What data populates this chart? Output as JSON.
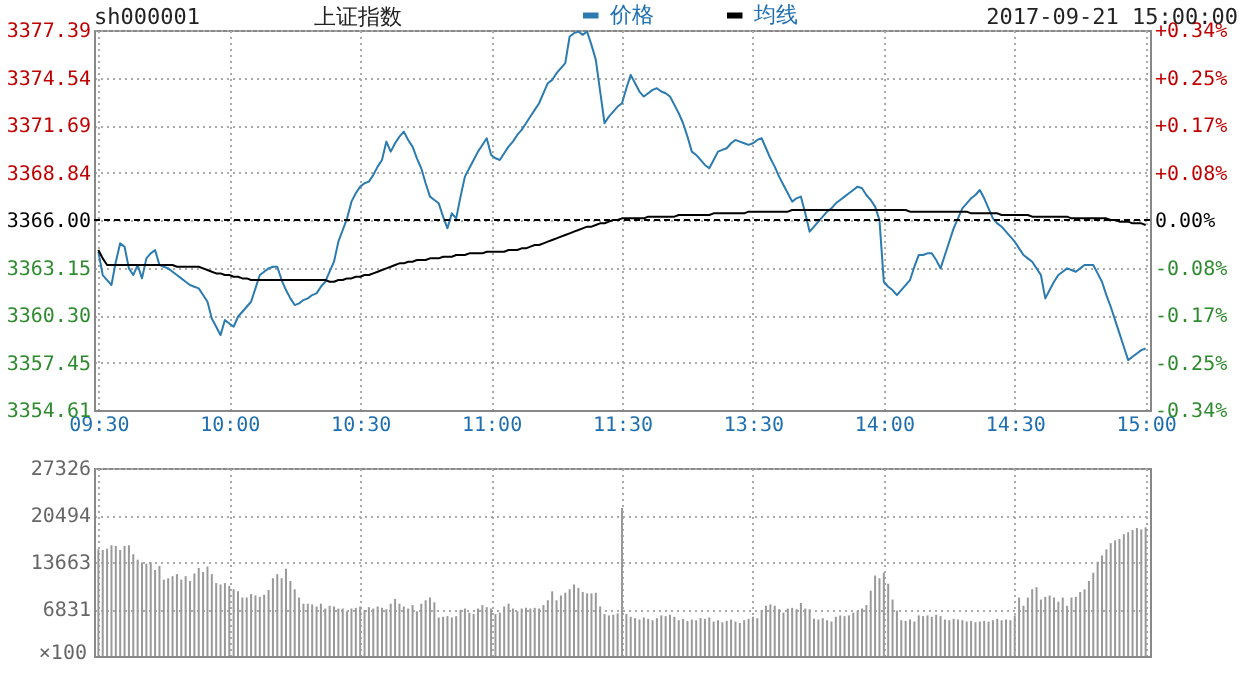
{
  "chart_data": [
    {
      "type": "line",
      "title": "上证指数",
      "annotations": [
        "sh000001",
        "2017-09-21 15:00:00"
      ],
      "legend": "top",
      "grid": true,
      "marker": "none",
      "line_style": "solid",
      "categories": [
        "09:30",
        null,
        null,
        null,
        null,
        null,
        null,
        null,
        null,
        null,
        null,
        null,
        null,
        null,
        null,
        null,
        null,
        null,
        null,
        null,
        null,
        null,
        null,
        null,
        null,
        null,
        null,
        null,
        null,
        null,
        "10:00",
        null,
        null,
        null,
        null,
        null,
        null,
        null,
        null,
        null,
        null,
        null,
        null,
        null,
        null,
        null,
        null,
        null,
        null,
        null,
        null,
        null,
        null,
        null,
        null,
        null,
        null,
        null,
        null,
        null,
        "10:30",
        null,
        null,
        null,
        null,
        null,
        null,
        null,
        null,
        null,
        null,
        null,
        null,
        null,
        null,
        null,
        null,
        null,
        null,
        null,
        null,
        null,
        null,
        null,
        null,
        null,
        null,
        null,
        null,
        null,
        "11:00",
        null,
        null,
        null,
        null,
        null,
        null,
        null,
        null,
        null,
        null,
        null,
        null,
        null,
        null,
        null,
        null,
        null,
        null,
        null,
        null,
        null,
        null,
        null,
        null,
        null,
        null,
        null,
        null,
        null,
        "11:30",
        null,
        null,
        null,
        null,
        null,
        null,
        null,
        null,
        null,
        null,
        null,
        null,
        null,
        null,
        null,
        null,
        null,
        null,
        null,
        null,
        null,
        null,
        null,
        null,
        null,
        null,
        null,
        null,
        null,
        "13:30",
        null,
        null,
        null,
        null,
        null,
        null,
        null,
        null,
        null,
        null,
        null,
        null,
        null,
        null,
        null,
        null,
        null,
        null,
        null,
        null,
        null,
        null,
        null,
        null,
        null,
        null,
        null,
        null,
        null,
        "14:00",
        null,
        null,
        null,
        null,
        null,
        null,
        null,
        null,
        null,
        null,
        null,
        null,
        null,
        null,
        null,
        null,
        null,
        null,
        null,
        null,
        null,
        null,
        null,
        null,
        null,
        null,
        null,
        null,
        null,
        "14:30",
        null,
        null,
        null,
        null,
        null,
        null,
        null,
        null,
        null,
        null,
        null,
        null,
        null,
        null,
        null,
        null,
        null,
        null,
        null,
        null,
        null,
        null,
        null,
        null,
        null,
        null,
        null,
        null,
        null,
        "15:00"
      ],
      "ylim": [
        3354.61,
        3377.39
      ],
      "yticks": [
        3354.61,
        3357.45,
        {
          "value": 3360.3,
          "label": "3360.30"
        },
        3363.15,
        {
          "value": 3366,
          "label": "3366.00"
        },
        3368.84,
        3371.69,
        3374.54,
        3377.39
      ],
      "y2lim": [
        -0.34,
        0.34
      ],
      "y2ticks": [
        {
          "value": -0.34,
          "label": "-0.34%"
        },
        {
          "value": -0.255,
          "label": "-0.25%"
        },
        {
          "value": -0.17,
          "label": "-0.17%"
        },
        {
          "value": -0.085,
          "label": "-0.08%"
        },
        {
          "value": 0,
          "label": "0.00%"
        },
        {
          "value": 0.085,
          "label": "+0.08%"
        },
        {
          "value": 0.17,
          "label": "+0.17%"
        },
        {
          "value": 0.255,
          "label": "+0.25%"
        },
        {
          "value": 0.34,
          "label": "+0.34%"
        }
      ],
      "ref_lines": [
        {
          "axis": "y2",
          "value": 0,
          "color": "#000000",
          "line_style": "dashed"
        }
      ],
      "series": [
        {
          "name": "价格",
          "color": "#2b7bb0",
          "values": [
            3364.1,
            3362.7,
            3362.4,
            3362.1,
            3363.5,
            3364.6,
            3364.4,
            3363.1,
            3362.7,
            3363.3,
            3362.5,
            3363.7,
            3364.0,
            3364.2,
            3363.3,
            3363.2,
            3363.1,
            3362.9,
            3362.7,
            3362.5,
            3362.3,
            3362.1,
            3362.0,
            3361.9,
            3361.5,
            3361.1,
            3360.1,
            3359.6,
            3359.1,
            3360.0,
            3359.8,
            3359.6,
            3360.2,
            3360.5,
            3360.8,
            3361.1,
            3361.9,
            3362.7,
            3362.9,
            3363.1,
            3363.2,
            3363.2,
            3362.4,
            3361.8,
            3361.3,
            3360.9,
            3361.0,
            3361.2,
            3361.3,
            3361.5,
            3361.6,
            3362.0,
            3362.3,
            3362.9,
            3363.5,
            3364.7,
            3365.4,
            3366.1,
            3367.1,
            3367.6,
            3368.0,
            3368.2,
            3368.3,
            3368.7,
            3369.2,
            3369.6,
            3370.7,
            3370.1,
            3370.6,
            3371.0,
            3371.3,
            3370.8,
            3370.4,
            3369.7,
            3369.1,
            3368.2,
            3367.4,
            3367.2,
            3367.0,
            3366.2,
            3365.5,
            3366.4,
            3366.1,
            3367.4,
            3368.6,
            3369.1,
            3369.6,
            3370.1,
            3370.5,
            3370.9,
            3369.9,
            3369.7,
            3369.6,
            3370.0,
            3370.4,
            3370.7,
            3371.1,
            3371.4,
            3371.8,
            3372.2,
            3372.6,
            3373.0,
            3373.6,
            3374.2,
            3374.4,
            3374.8,
            3375.1,
            3375.4,
            3377.0,
            3377.2,
            3377.3,
            3377.1,
            3377.3,
            3376.5,
            3375.6,
            3373.7,
            3371.8,
            3372.2,
            3372.5,
            3372.8,
            3373.0,
            3373.9,
            3374.7,
            3374.2,
            3373.7,
            3373.4,
            3373.6,
            3373.8,
            3373.9,
            3373.7,
            3373.6,
            3373.4,
            3372.9,
            3372.4,
            3371.8,
            3371.0,
            3370.1,
            3369.9,
            3369.6,
            3369.3,
            3369.1,
            3369.6,
            3370.1,
            3370.2,
            3370.3,
            3370.6,
            3370.8,
            3370.7,
            3370.6,
            3370.5,
            3370.6,
            3370.8,
            3370.9,
            3370.3,
            3369.7,
            3369.2,
            3368.6,
            3368.1,
            3367.6,
            3367.1,
            3367.3,
            3367.4,
            3366.4,
            3365.3,
            3365.6,
            3365.9,
            3366.2,
            3366.5,
            3366.7,
            3367.0,
            3367.2,
            3367.4,
            3367.6,
            3367.8,
            3368.0,
            3367.9,
            3367.5,
            3367.2,
            3366.8,
            3366.0,
            3362.3,
            3362.0,
            3361.8,
            3361.5,
            3361.8,
            3362.1,
            3362.4,
            3363.2,
            3363.9,
            3363.9,
            3364.0,
            3364.0,
            3363.6,
            3363.1,
            3363.9,
            3364.7,
            3365.5,
            3366.1,
            3366.7,
            3367.0,
            3367.3,
            3367.5,
            3367.8,
            3367.3,
            3366.7,
            3366.1,
            3365.8,
            3365.6,
            3365.3,
            3365.0,
            3364.7,
            3364.3,
            3363.9,
            3363.7,
            3363.5,
            3363.1,
            3362.7,
            3361.3,
            3361.8,
            3362.3,
            3362.7,
            3362.9,
            3363.1,
            3363.0,
            3362.9,
            3363.1,
            3363.3,
            3363.3,
            3363.3,
            3362.8,
            3362.3,
            3361.5,
            3360.8,
            3360.0,
            3359.2,
            3358.4,
            3357.6,
            3357.8,
            3358.0,
            3358.2,
            3358.3
          ]
        },
        {
          "name": "均线",
          "color": "#000000",
          "values": [
            3364.2,
            3363.7,
            3363.3,
            3363.3,
            3363.3,
            3363.3,
            3363.3,
            3363.3,
            3363.3,
            3363.3,
            3363.3,
            3363.3,
            3363.3,
            3363.3,
            3363.3,
            3363.3,
            3363.3,
            3363.3,
            3363.2,
            3363.2,
            3363.2,
            3363.2,
            3363.2,
            3363.2,
            3363.1,
            3363.0,
            3362.9,
            3362.8,
            3362.8,
            3362.7,
            3362.7,
            3362.6,
            3362.6,
            3362.5,
            3362.5,
            3362.4,
            3362.4,
            3362.4,
            3362.4,
            3362.4,
            3362.4,
            3362.4,
            3362.4,
            3362.4,
            3362.4,
            3362.4,
            3362.4,
            3362.4,
            3362.4,
            3362.4,
            3362.4,
            3362.4,
            3362.4,
            3362.3,
            3362.3,
            3362.4,
            3362.4,
            3362.5,
            3362.5,
            3362.6,
            3362.6,
            3362.7,
            3362.7,
            3362.8,
            3362.9,
            3363.0,
            3363.1,
            3363.2,
            3363.3,
            3363.4,
            3363.4,
            3363.5,
            3363.5,
            3363.6,
            3363.6,
            3363.6,
            3363.7,
            3363.7,
            3363.7,
            3363.8,
            3363.8,
            3363.8,
            3363.9,
            3363.9,
            3363.9,
            3364.0,
            3364.0,
            3364.0,
            3364.0,
            3364.1,
            3364.1,
            3364.1,
            3364.1,
            3364.1,
            3364.2,
            3364.2,
            3364.2,
            3364.3,
            3364.3,
            3364.4,
            3364.5,
            3364.5,
            3364.6,
            3364.7,
            3364.8,
            3364.9,
            3365.0,
            3365.1,
            3365.2,
            3365.3,
            3365.4,
            3365.5,
            3365.6,
            3365.6,
            3365.7,
            3365.8,
            3365.8,
            3365.9,
            3366.0,
            3366.0,
            3366.1,
            3366.1,
            3366.1,
            3366.1,
            3366.1,
            3366.1,
            3366.2,
            3366.2,
            3366.2,
            3366.2,
            3366.2,
            3366.2,
            3366.2,
            3366.3,
            3366.3,
            3366.3,
            3366.3,
            3366.3,
            3366.3,
            3366.3,
            3366.3,
            3366.4,
            3366.4,
            3366.4,
            3366.4,
            3366.4,
            3366.4,
            3366.4,
            3366.4,
            3366.5,
            3366.5,
            3366.5,
            3366.5,
            3366.5,
            3366.5,
            3366.5,
            3366.5,
            3366.5,
            3366.5,
            3366.6,
            3366.6,
            3366.6,
            3366.6,
            3366.6,
            3366.6,
            3366.6,
            3366.6,
            3366.6,
            3366.6,
            3366.6,
            3366.6,
            3366.6,
            3366.6,
            3366.6,
            3366.6,
            3366.6,
            3366.6,
            3366.6,
            3366.6,
            3366.6,
            3366.6,
            3366.6,
            3366.6,
            3366.6,
            3366.6,
            3366.6,
            3366.5,
            3366.5,
            3366.5,
            3366.5,
            3366.5,
            3366.5,
            3366.5,
            3366.5,
            3366.5,
            3366.5,
            3366.5,
            3366.5,
            3366.5,
            3366.5,
            3366.4,
            3366.4,
            3366.4,
            3366.4,
            3366.4,
            3366.4,
            3366.4,
            3366.3,
            3366.3,
            3366.3,
            3366.3,
            3366.3,
            3366.3,
            3366.3,
            3366.2,
            3366.2,
            3366.2,
            3366.2,
            3366.2,
            3366.2,
            3366.2,
            3366.2,
            3366.2,
            3366.1,
            3366.1,
            3366.1,
            3366.1,
            3366.1,
            3366.1,
            3366.1,
            3366.1,
            3366.1,
            3366.0,
            3366.0,
            3365.9,
            3365.9,
            3365.9,
            3365.8,
            3365.8,
            3365.8,
            3365.7
          ]
        }
      ]
    },
    {
      "type": "bar",
      "grid": true,
      "tick_labels": "y",
      "color": "#999999",
      "ylabel": "×100",
      "categories": [
        null,
        null,
        null,
        null,
        null,
        null,
        null,
        null,
        null,
        null,
        null,
        null,
        null,
        null,
        null,
        null,
        null,
        null,
        null,
        null,
        null,
        null,
        null,
        null,
        null,
        null,
        null,
        null,
        null,
        null,
        null,
        null,
        null,
        null,
        null,
        null,
        null,
        null,
        null,
        null,
        null,
        null,
        null,
        null,
        null,
        null,
        null,
        null,
        null,
        null,
        null,
        null,
        null,
        null,
        null,
        null,
        null,
        null,
        null,
        null,
        null,
        null,
        null,
        null,
        null,
        null,
        null,
        null,
        null,
        null,
        null,
        null,
        null,
        null,
        null,
        null,
        null,
        null,
        null,
        null,
        null,
        null,
        null,
        null,
        null,
        null,
        null,
        null,
        null,
        null,
        null,
        null,
        null,
        null,
        null,
        null,
        null,
        null,
        null,
        null,
        null,
        null,
        null,
        null,
        null,
        null,
        null,
        null,
        null,
        null,
        null,
        null,
        null,
        null,
        null,
        null,
        null,
        null,
        null,
        null,
        null,
        null,
        null,
        null,
        null,
        null,
        null,
        null,
        null,
        null,
        null,
        null,
        null,
        null,
        null,
        null,
        null,
        null,
        null,
        null,
        null,
        null,
        null,
        null,
        null,
        null,
        null,
        null,
        null,
        null,
        null,
        null,
        null,
        null,
        null,
        null,
        null,
        null,
        null,
        null,
        null,
        null,
        null,
        null,
        null,
        null,
        null,
        null,
        null,
        null,
        null,
        null,
        null,
        null,
        null,
        null,
        null,
        null,
        null,
        null,
        null,
        null,
        null,
        null,
        null,
        null,
        null,
        null,
        null,
        null,
        null,
        null,
        null,
        null,
        null,
        null,
        null,
        null,
        null,
        null,
        null,
        null,
        null,
        null,
        null,
        null,
        null,
        null,
        null,
        null,
        null,
        null,
        null,
        null,
        null,
        null,
        null,
        null,
        null,
        null,
        null,
        null,
        null,
        null,
        null,
        null,
        null,
        null,
        null,
        null,
        null,
        null,
        null,
        null,
        null,
        null,
        null,
        null,
        null,
        null,
        null
      ],
      "ylim": [
        0,
        27326
      ],
      "yticks": [
        6831,
        13663,
        20494,
        27326
      ],
      "values": [
        15500,
        15400,
        15600,
        16100,
        16000,
        15400,
        16000,
        16100,
        14800,
        14000,
        13600,
        13400,
        13600,
        12500,
        13100,
        11100,
        11300,
        11600,
        11900,
        11100,
        11600,
        10900,
        12000,
        12800,
        12200,
        13000,
        11900,
        10600,
        10400,
        10600,
        10200,
        9700,
        9400,
        8500,
        8500,
        9000,
        8800,
        8600,
        8900,
        9600,
        11300,
        11900,
        11300,
        12700,
        10900,
        9700,
        8500,
        7600,
        7600,
        7500,
        7200,
        7600,
        6900,
        7300,
        7200,
        6900,
        6900,
        6500,
        6900,
        7000,
        7200,
        6700,
        7100,
        6900,
        7200,
        7000,
        6800,
        7600,
        8300,
        7600,
        7200,
        6900,
        7400,
        6500,
        7600,
        8100,
        8500,
        7800,
        5600,
        5700,
        5800,
        5600,
        5800,
        6700,
        6900,
        6300,
        6100,
        6900,
        7400,
        7100,
        6900,
        6100,
        6300,
        7200,
        7600,
        6900,
        6500,
        6900,
        7000,
        6900,
        7000,
        6900,
        7400,
        8100,
        9400,
        8100,
        8800,
        9200,
        9700,
        10400,
        9900,
        9300,
        9100,
        9100,
        9200,
        7200,
        6100,
        5900,
        6000,
        6200,
        21500,
        6100,
        5700,
        5500,
        5300,
        5600,
        5400,
        5200,
        5500,
        5900,
        5800,
        6000,
        5700,
        5200,
        5400,
        5100,
        5300,
        5200,
        5500,
        5400,
        5600,
        5000,
        5200,
        4900,
        5100,
        5300,
        5000,
        4800,
        5200,
        5400,
        5700,
        5500,
        6700,
        7300,
        7500,
        7300,
        6800,
        6300,
        6900,
        7000,
        6800,
        7700,
        6900,
        6800,
        5400,
        5300,
        5500,
        5200,
        5000,
        5700,
        5900,
        5800,
        5900,
        6300,
        6600,
        6900,
        7400,
        9500,
        11700,
        11300,
        12100,
        10500,
        8200,
        6600,
        5200,
        5100,
        5300,
        5000,
        5900,
        5800,
        5900,
        5700,
        6000,
        5800,
        5300,
        5200,
        5400,
        5300,
        5200,
        5000,
        5100,
        4900,
        5000,
        5100,
        5000,
        5200,
        5400,
        5200,
        5300,
        5200,
        5900,
        8500,
        7300,
        8500,
        9700,
        10000,
        8200,
        8600,
        8800,
        8500,
        7900,
        8500,
        7300,
        8500,
        8600,
        9300,
        9700,
        10900,
        12100,
        13700,
        14600,
        15500,
        16400,
        16800,
        17000,
        17700,
        18000,
        18300,
        18600,
        18400,
        18700
      ]
    }
  ]
}
